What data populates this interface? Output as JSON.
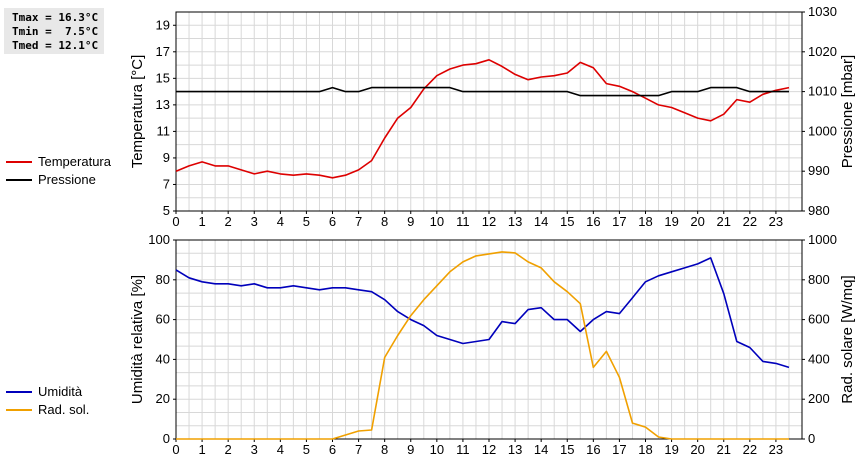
{
  "stats": {
    "tmax": "Tmax = 16.3°C",
    "tmin": "Tmin =  7.5°C",
    "tmed": "Tmed = 12.1°C"
  },
  "colors": {
    "temperature": "#dd0000",
    "pressure": "#000000",
    "humidity": "#0000bb",
    "solar": "#f0a000",
    "grid": "#d8d8d8"
  },
  "chart_data": [
    {
      "type": "line",
      "x_ticks": [
        0,
        1,
        2,
        3,
        4,
        5,
        6,
        7,
        8,
        9,
        10,
        11,
        12,
        13,
        14,
        15,
        16,
        17,
        18,
        19,
        20,
        21,
        22,
        23
      ],
      "ylabel": "Temperatura [°C]",
      "ylim": [
        5,
        20
      ],
      "y_ticks": [
        5,
        7,
        9,
        11,
        13,
        15,
        17,
        19
      ],
      "y2label": "Pressione [mbar]",
      "y2lim": [
        980,
        1030
      ],
      "y2_ticks": [
        980,
        990,
        1000,
        1010,
        1020,
        1030
      ],
      "grid": true,
      "legend_position": "left",
      "series": [
        {
          "name": "Temperatura",
          "axis": "left",
          "x": [
            0,
            0.5,
            1,
            1.5,
            2,
            2.5,
            3,
            3.5,
            4,
            4.5,
            5,
            5.5,
            6,
            6.5,
            7,
            7.5,
            8,
            8.5,
            9,
            9.5,
            10,
            10.5,
            11,
            11.5,
            12,
            12.5,
            13,
            13.5,
            14,
            14.5,
            15,
            15.5,
            16,
            16.5,
            17,
            17.5,
            18,
            18.5,
            19,
            19.5,
            20,
            20.5,
            21,
            21.5,
            22,
            22.5,
            23,
            23.5
          ],
          "values": [
            8.0,
            8.4,
            8.7,
            8.4,
            8.4,
            8.1,
            7.8,
            8.0,
            7.8,
            7.7,
            7.8,
            7.7,
            7.5,
            7.7,
            8.1,
            8.8,
            10.5,
            12.0,
            12.8,
            14.2,
            15.2,
            15.7,
            16.0,
            16.1,
            16.4,
            15.9,
            15.3,
            14.9,
            15.1,
            15.2,
            15.4,
            16.2,
            15.8,
            14.6,
            14.4,
            14.0,
            13.5,
            13.0,
            12.8,
            12.4,
            12.0,
            11.8,
            12.3,
            13.4,
            13.2,
            13.8,
            14.1,
            14.3
          ]
        },
        {
          "name": "Pressione",
          "axis": "right",
          "x": [
            0,
            0.5,
            1,
            1.5,
            2,
            2.5,
            3,
            3.5,
            4,
            4.5,
            5,
            5.5,
            6,
            6.5,
            7,
            7.5,
            8,
            8.5,
            9,
            9.5,
            10,
            10.5,
            11,
            11.5,
            12,
            12.5,
            13,
            13.5,
            14,
            14.5,
            15,
            15.5,
            16,
            16.5,
            17,
            17.5,
            18,
            18.5,
            19,
            19.5,
            20,
            20.5,
            21,
            21.5,
            22,
            22.5,
            23,
            23.5
          ],
          "values": [
            1010,
            1010,
            1010,
            1010,
            1010,
            1010,
            1010,
            1010,
            1010,
            1010,
            1010,
            1010,
            1011,
            1010,
            1010,
            1011,
            1011,
            1011,
            1011,
            1011,
            1011,
            1011,
            1010,
            1010,
            1010,
            1010,
            1010,
            1010,
            1010,
            1010,
            1010,
            1009,
            1009,
            1009,
            1009,
            1009,
            1009,
            1009,
            1010,
            1010,
            1010,
            1011,
            1011,
            1011,
            1010,
            1010,
            1010,
            1010
          ]
        }
      ]
    },
    {
      "type": "line",
      "x_ticks": [
        0,
        1,
        2,
        3,
        4,
        5,
        6,
        7,
        8,
        9,
        10,
        11,
        12,
        13,
        14,
        15,
        16,
        17,
        18,
        19,
        20,
        21,
        22,
        23
      ],
      "ylabel": "Umidità relativa [%]",
      "ylim": [
        0,
        100
      ],
      "y_ticks": [
        0,
        20,
        40,
        60,
        80,
        100
      ],
      "y2label": "Rad. solare [W/mq]",
      "y2lim": [
        0,
        1000
      ],
      "y2_ticks": [
        0,
        200,
        400,
        600,
        800,
        1000
      ],
      "grid": true,
      "legend_position": "left",
      "series": [
        {
          "name": "Umidità",
          "axis": "left",
          "x": [
            0,
            0.5,
            1,
            1.5,
            2,
            2.5,
            3,
            3.5,
            4,
            4.5,
            5,
            5.5,
            6,
            6.5,
            7,
            7.5,
            8,
            8.5,
            9,
            9.5,
            10,
            10.5,
            11,
            11.5,
            12,
            12.5,
            13,
            13.5,
            14,
            14.5,
            15,
            15.5,
            16,
            16.5,
            17,
            17.5,
            18,
            18.5,
            19,
            19.5,
            20,
            20.5,
            21,
            21.5,
            22,
            22.5,
            23,
            23.5
          ],
          "values": [
            85,
            81,
            79,
            78,
            78,
            77,
            78,
            76,
            76,
            77,
            76,
            75,
            76,
            76,
            75,
            74,
            70,
            64,
            60,
            57,
            52,
            50,
            48,
            49,
            50,
            59,
            58,
            65,
            66,
            60,
            60,
            54,
            60,
            64,
            63,
            71,
            79,
            82,
            84,
            86,
            88,
            91,
            73,
            49,
            46,
            39,
            38,
            36
          ]
        },
        {
          "name": "Rad. sol.",
          "axis": "right",
          "x": [
            0,
            0.5,
            1,
            1.5,
            2,
            2.5,
            3,
            3.5,
            4,
            4.5,
            5,
            5.5,
            6,
            6.5,
            7,
            7.5,
            8,
            8.5,
            9,
            9.5,
            10,
            10.5,
            11,
            11.5,
            12,
            12.5,
            13,
            13.5,
            14,
            14.5,
            15,
            15.5,
            16,
            16.5,
            17,
            17.5,
            18,
            18.5,
            19,
            19.5,
            20,
            20.5,
            21,
            21.5,
            22,
            22.5,
            23,
            23.5
          ],
          "values": [
            0,
            0,
            0,
            0,
            0,
            0,
            0,
            0,
            0,
            0,
            0,
            0,
            0,
            20,
            40,
            45,
            410,
            520,
            620,
            700,
            770,
            840,
            890,
            920,
            930,
            940,
            935,
            890,
            860,
            790,
            740,
            680,
            360,
            440,
            310,
            80,
            60,
            10,
            0,
            0,
            0,
            0,
            0,
            0,
            0,
            0,
            0,
            0
          ]
        }
      ]
    }
  ]
}
